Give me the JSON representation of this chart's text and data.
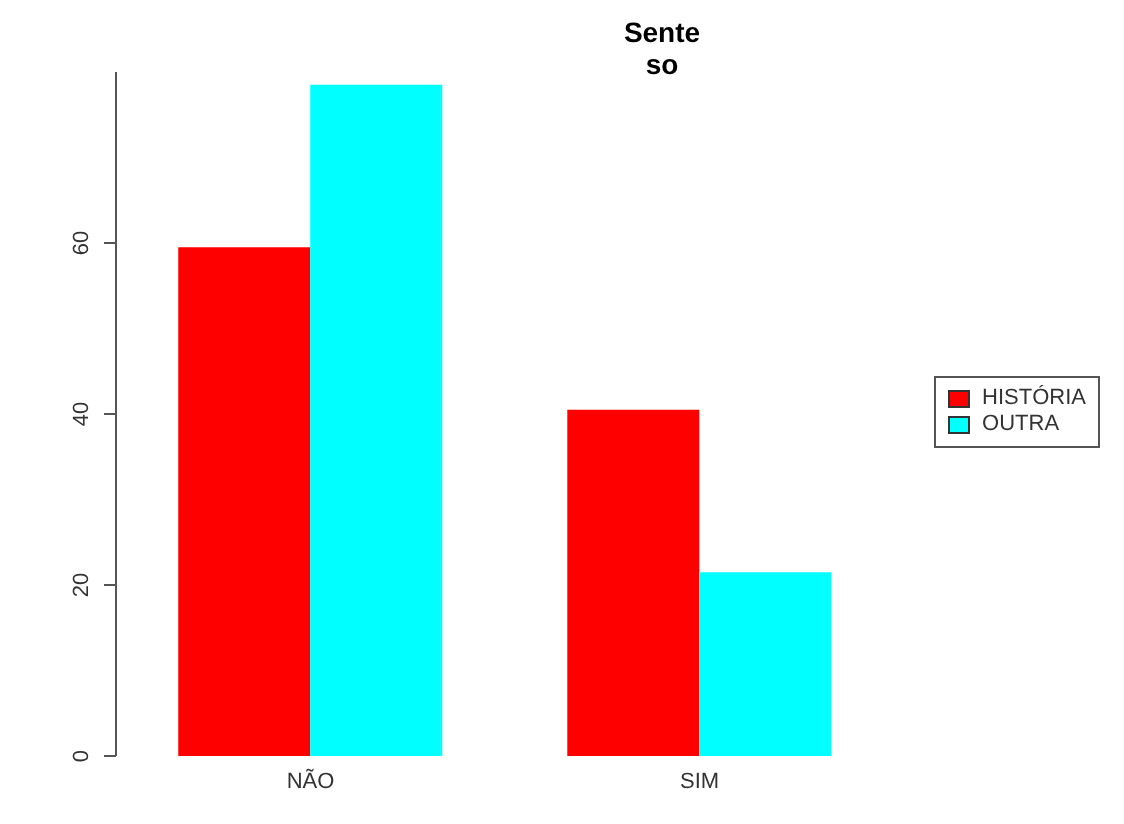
{
  "chart_data": {
    "type": "bar",
    "title": "Sente",
    "subtitle": "so",
    "categories": [
      "NÃO",
      "SIM"
    ],
    "series": [
      {
        "name": "HISTÓRIA",
        "color": "#ff0000",
        "values": [
          59.5,
          40.5
        ]
      },
      {
        "name": "OUTRA",
        "color": "#00ffff",
        "values": [
          78.5,
          21.5
        ]
      }
    ],
    "ylim": [
      0,
      80
    ],
    "yticks": [
      0,
      20,
      40,
      60
    ],
    "grid": false,
    "legend": "right"
  }
}
